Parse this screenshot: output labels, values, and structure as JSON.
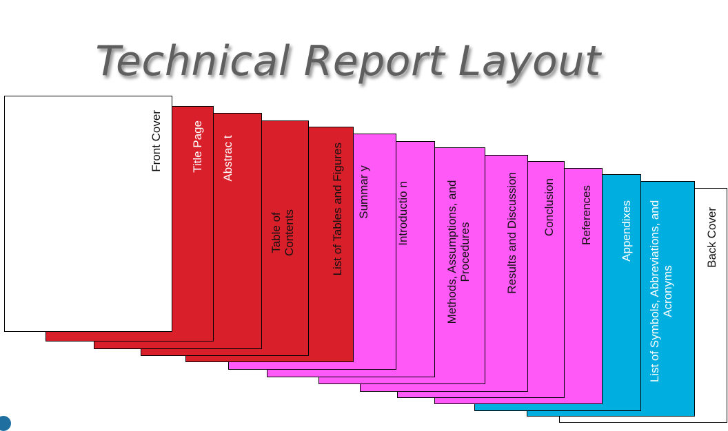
{
  "title": "Technical Report Layout",
  "pages": [
    {
      "label": "Front Cover"
    },
    {
      "label": "Title Page"
    },
    {
      "label": "Abstrac t"
    },
    {
      "label": "Table of Contents"
    },
    {
      "label": "List of Tables and Figures"
    },
    {
      "label": "Summar y"
    },
    {
      "label": "Introductio n"
    },
    {
      "label": "Methods, Assumptions, and Procedures"
    },
    {
      "label": "Results and Discussion"
    },
    {
      "label": "Conclusion"
    },
    {
      "label": "References"
    },
    {
      "label": "Appendixes"
    },
    {
      "label": "List of Symbols, Abbreviations, and Acronyms"
    },
    {
      "label": "Back Cover"
    }
  ],
  "colors": {
    "front_matter": "#d91f29",
    "body": "#ff5af7",
    "back_matter": "#00aee0",
    "covers": "#ffffff"
  }
}
